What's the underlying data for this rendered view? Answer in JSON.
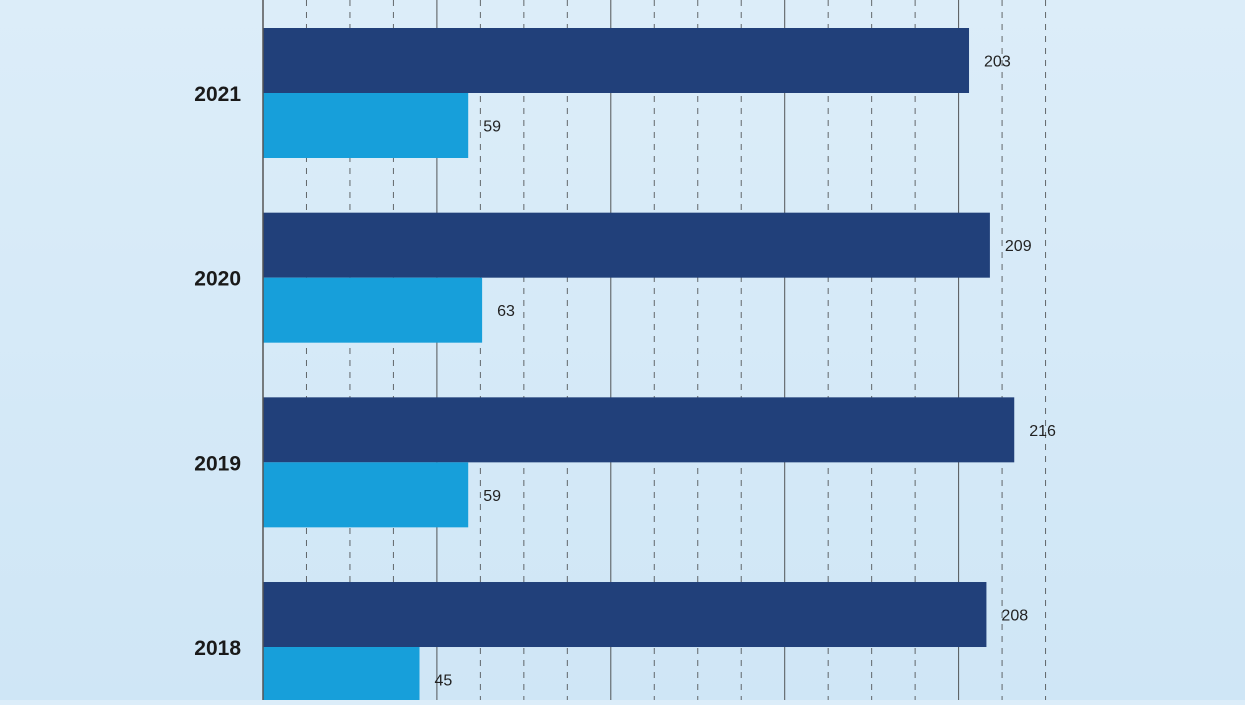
{
  "chart_data": {
    "type": "bar",
    "orientation": "horizontal",
    "categories": [
      "2021",
      "2020",
      "2019",
      "2018"
    ],
    "series": [
      {
        "values": [
          203,
          209,
          216,
          208
        ],
        "color": "#21407a"
      },
      {
        "values": [
          59,
          63,
          59,
          45
        ],
        "color": "#179fda"
      }
    ],
    "xlim": [
      0,
      225
    ],
    "grid": true,
    "legend": "none",
    "title": "",
    "xlabel": "",
    "ylabel": ""
  }
}
